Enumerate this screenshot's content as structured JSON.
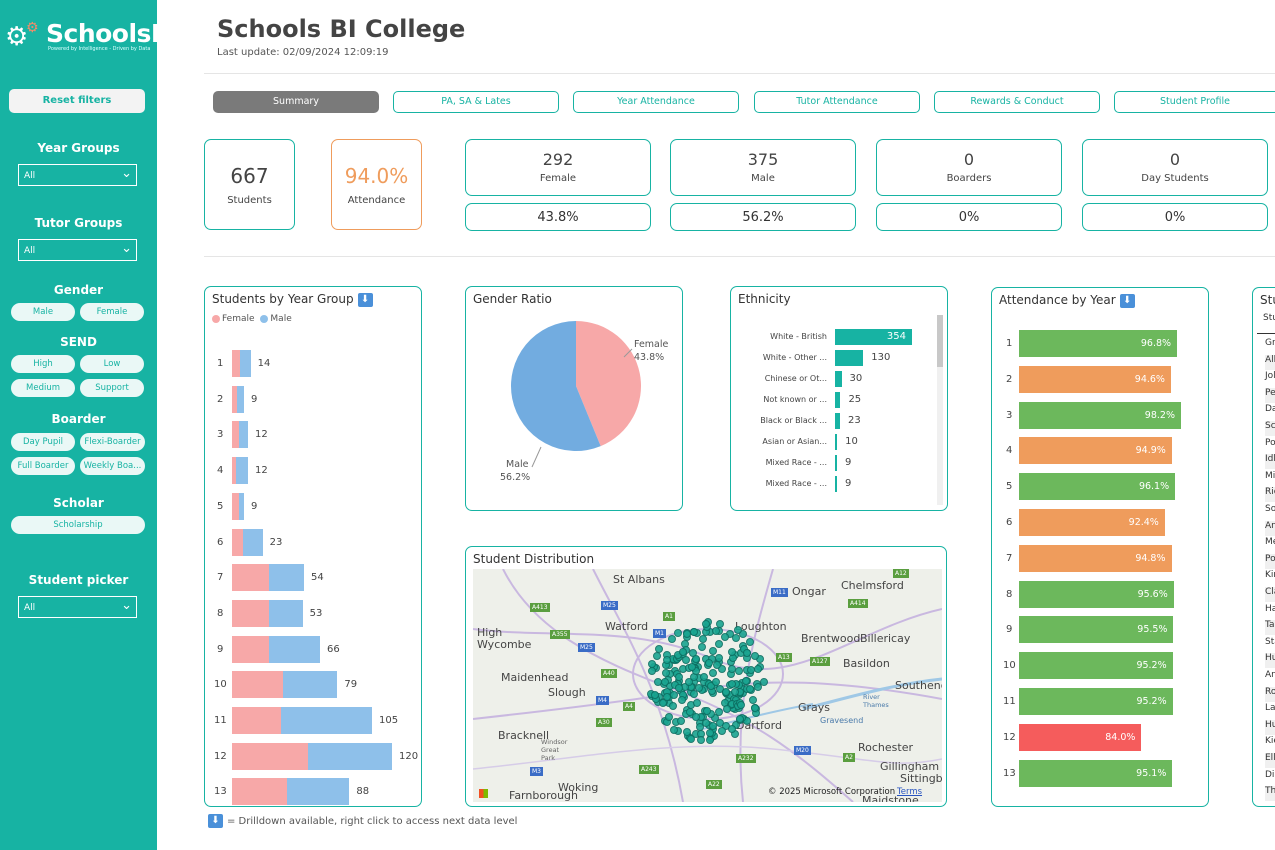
{
  "logo": {
    "name": "SchoolsBI",
    "tagline": "Powered by Intelligence - Driven by Data"
  },
  "sidebar": {
    "reset_label": "Reset filters",
    "year_groups": {
      "label": "Year Groups",
      "value": "All"
    },
    "tutor_groups": {
      "label": "Tutor Groups",
      "value": "All"
    },
    "gender": {
      "label": "Gender",
      "options": [
        "Male",
        "Female"
      ]
    },
    "send": {
      "label": "SEND",
      "options": [
        "High",
        "Low",
        "Medium",
        "Support"
      ]
    },
    "boarder": {
      "label": "Boarder",
      "options": [
        "Day Pupil",
        "Flexi-Boarder",
        "Full Boarder",
        "Weekly Boa..."
      ]
    },
    "scholar": {
      "label": "Scholar",
      "options": [
        "Scholarship"
      ]
    },
    "student_picker": {
      "label": "Student picker",
      "value": "All"
    }
  },
  "header": {
    "title": "Schools BI College",
    "last_update": "Last update: 02/09/2024 12:09:19"
  },
  "tabs": [
    "Summary",
    "PA, SA & Lates",
    "Year Attendance",
    "Tutor Attendance",
    "Rewards & Conduct",
    "Student Profile"
  ],
  "kpis": {
    "students": {
      "value": "667",
      "label": "Students"
    },
    "attendance": {
      "value": "94.0%",
      "label": "Attendance"
    },
    "female": {
      "value": "292",
      "label": "Female",
      "pct": "43.8%"
    },
    "male": {
      "value": "375",
      "label": "Male",
      "pct": "56.2%"
    },
    "boarders": {
      "value": "0",
      "label": "Boarders",
      "pct": "0%"
    },
    "day_students": {
      "value": "0",
      "label": "Day Students",
      "pct": "0%"
    }
  },
  "year_group_chart": {
    "title": "Students by Year Group",
    "legend": [
      "Female",
      "Male"
    ],
    "colors": {
      "female": "#f7a8a8",
      "male": "#8ec0ea"
    },
    "rows": [
      {
        "year": "1",
        "female": 6,
        "male": 8,
        "total": "14"
      },
      {
        "year": "2",
        "female": 4,
        "male": 5,
        "total": "9"
      },
      {
        "year": "3",
        "female": 5,
        "male": 7,
        "total": "12"
      },
      {
        "year": "4",
        "female": 3,
        "male": 9,
        "total": "12"
      },
      {
        "year": "5",
        "female": 5,
        "male": 4,
        "total": "9"
      },
      {
        "year": "6",
        "female": 8,
        "male": 15,
        "total": "23"
      },
      {
        "year": "7",
        "female": 28,
        "male": 26,
        "total": "54"
      },
      {
        "year": "8",
        "female": 28,
        "male": 25,
        "total": "53"
      },
      {
        "year": "9",
        "female": 28,
        "male": 38,
        "total": "66"
      },
      {
        "year": "10",
        "female": 38,
        "male": 41,
        "total": "79"
      },
      {
        "year": "11",
        "female": 37,
        "male": 68,
        "total": "105"
      },
      {
        "year": "12",
        "female": 57,
        "male": 63,
        "total": "120"
      },
      {
        "year": "13",
        "female": 41,
        "male": 47,
        "total": "88"
      }
    ]
  },
  "gender_ratio": {
    "title": "Gender Ratio",
    "female_label": "Female",
    "female_pct": "43.8%",
    "female_value": 43.8,
    "male_label": "Male",
    "male_pct": "56.2%",
    "male_value": 56.2
  },
  "ethnicity": {
    "title": "Ethnicity",
    "rows": [
      {
        "label": "White - British",
        "value": 354
      },
      {
        "label": "White - Other ...",
        "value": 130
      },
      {
        "label": "Chinese or Ot...",
        "value": 30
      },
      {
        "label": "Not known or ...",
        "value": 25
      },
      {
        "label": "Black or Black ...",
        "value": 23
      },
      {
        "label": "Asian or Asian...",
        "value": 10
      },
      {
        "label": "Mixed Race - ...",
        "value": 9
      },
      {
        "label": "Mixed Race - ...",
        "value": 9
      }
    ]
  },
  "distribution": {
    "title": "Student Distribution",
    "places": [
      "St Albans",
      "Chelmsford",
      "Ongar",
      "Watford",
      "Loughton",
      "High Wycombe",
      "Brentwood",
      "Billericay",
      "Basildon",
      "Maidenhead",
      "Slough",
      "Southend",
      "Windsor Great Park",
      "Grays",
      "River Thames",
      "Gravesend",
      "Dartford",
      "Bracknell",
      "Rochester",
      "Gillingham",
      "Sittingbourne",
      "Woking",
      "Farnborough",
      "Maidstone"
    ],
    "roads": [
      "A12",
      "M11",
      "A414",
      "A413",
      "M25",
      "A1",
      "M1",
      "A355",
      "M25",
      "A13",
      "A127",
      "A40",
      "M4",
      "A4",
      "A30",
      "M3",
      "A243",
      "A22",
      "A232",
      "M20",
      "A2"
    ],
    "copyright": "© 2025 Microsoft Corporation",
    "terms": "Terms"
  },
  "attendance_by_year": {
    "title": "Attendance by Year",
    "colors": {
      "green": "#6cb85c",
      "orange": "#ef9c5c",
      "red": "#f55c5c"
    },
    "rows": [
      {
        "year": "1",
        "value": 96.8,
        "label": "96.8%",
        "color": "green"
      },
      {
        "year": "2",
        "value": 94.6,
        "label": "94.6%",
        "color": "orange"
      },
      {
        "year": "3",
        "value": 98.2,
        "label": "98.2%",
        "color": "green"
      },
      {
        "year": "4",
        "value": 94.9,
        "label": "94.9%",
        "color": "orange"
      },
      {
        "year": "5",
        "value": 96.1,
        "label": "96.1%",
        "color": "green"
      },
      {
        "year": "6",
        "value": 92.4,
        "label": "92.4%",
        "color": "orange"
      },
      {
        "year": "7",
        "value": 94.8,
        "label": "94.8%",
        "color": "orange"
      },
      {
        "year": "8",
        "value": 95.6,
        "label": "95.6%",
        "color": "green"
      },
      {
        "year": "9",
        "value": 95.5,
        "label": "95.5%",
        "color": "green"
      },
      {
        "year": "10",
        "value": 95.2,
        "label": "95.2%",
        "color": "green"
      },
      {
        "year": "11",
        "value": 95.2,
        "label": "95.2%",
        "color": "green"
      },
      {
        "year": "12",
        "value": 84.0,
        "label": "84.0%",
        "color": "red"
      },
      {
        "year": "13",
        "value": 95.1,
        "label": "95.1%",
        "color": "green"
      }
    ]
  },
  "students_list": {
    "title": "Stu",
    "header": "Stu",
    "rows": [
      "Gr",
      "All",
      "Jol",
      "Pe",
      "Da",
      "Sc",
      "Po",
      "Idl",
      "Mi",
      "Ric",
      "So",
      "An",
      "Me",
      "Po",
      "Kir",
      "Cla",
      "Ha",
      "Ta",
      "Sta",
      "Hu",
      "An",
      "Ro",
      "La",
      "Hu",
      "Kie",
      "Ell",
      "Di",
      "Th"
    ]
  },
  "footer_note": "= Drilldown available, right click to access next data level"
}
